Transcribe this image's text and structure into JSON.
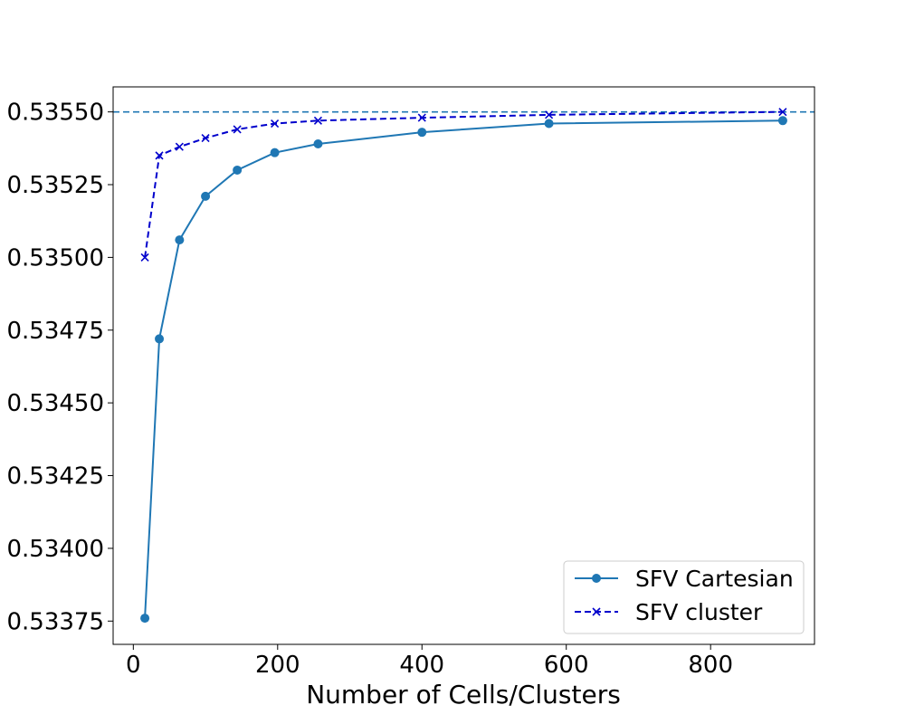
{
  "chart_data": {
    "type": "line",
    "title": "",
    "xlabel": "Number of Cells/Clusters",
    "ylabel": "",
    "xlim": [
      -28,
      944
    ],
    "ylim": [
      0.53367,
      0.535586
    ],
    "xticks": [
      0,
      200,
      400,
      600,
      800
    ],
    "yticks": [
      0.53375,
      0.534,
      0.53425,
      0.5345,
      0.53475,
      0.535,
      0.53525,
      0.5355
    ],
    "ytick_labels": [
      "0.53375",
      "0.53400",
      "0.53425",
      "0.53450",
      "0.53475",
      "0.53500",
      "0.53525",
      "0.53550"
    ],
    "xtick_labels": [
      "0",
      "200",
      "400",
      "600",
      "800"
    ],
    "reference_line": {
      "y": 0.5355,
      "style": "dashed",
      "color": "#1f77b4"
    },
    "legend_position": "lower-right",
    "series": [
      {
        "name": "SFV Cartesian",
        "color": "#1f77b4",
        "linestyle": "solid",
        "marker": "circle",
        "x": [
          16,
          36,
          64,
          100,
          144,
          196,
          256,
          400,
          576,
          900
        ],
        "y": [
          0.53376,
          0.53472,
          0.53506,
          0.53521,
          0.5353,
          0.53536,
          0.53539,
          0.53543,
          0.53546,
          0.53547
        ]
      },
      {
        "name": "SFV cluster",
        "color": "#0000cc",
        "linestyle": "dashed",
        "marker": "x",
        "x": [
          16,
          36,
          64,
          100,
          144,
          196,
          256,
          400,
          576,
          900
        ],
        "y": [
          0.535,
          0.53535,
          0.53538,
          0.53541,
          0.53544,
          0.53546,
          0.53547,
          0.53548,
          0.53549,
          0.5355
        ]
      }
    ]
  }
}
